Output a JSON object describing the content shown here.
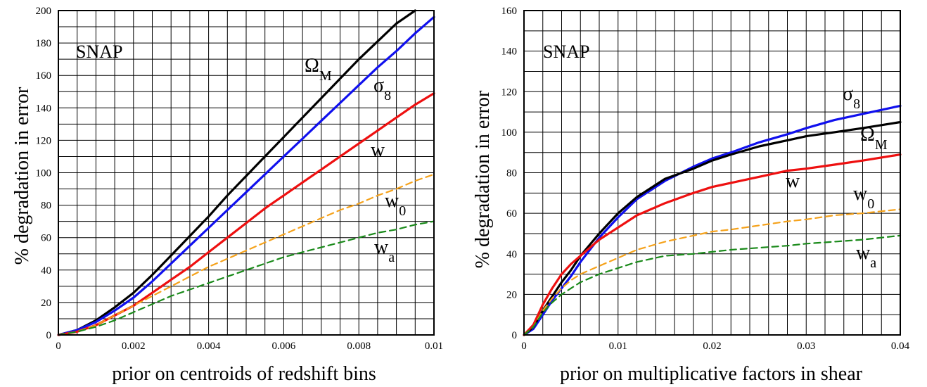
{
  "colors": {
    "omega_m": "#000000",
    "sigma_8": "#1010ee",
    "w": "#ee1010",
    "w0": "#f5a21b",
    "wa": "#1a8a1a"
  },
  "chart_data": [
    {
      "type": "line",
      "xlabel": "prior on centroids of redshift bins",
      "ylabel": "% degradation in error",
      "annotation": "SNAP",
      "xlim": [
        0,
        0.01
      ],
      "ylim": [
        0,
        200
      ],
      "xticks": [
        0,
        0.002,
        0.004,
        0.006,
        0.008,
        0.01
      ],
      "xtick_labels": [
        "0",
        "0.002",
        "0.004",
        "0.006",
        "0.008",
        "0.01"
      ],
      "yticks": [
        0,
        20,
        40,
        60,
        80,
        100,
        120,
        140,
        160,
        180,
        200
      ],
      "ytick_labels": [
        "0",
        "20",
        "40",
        "60",
        "80",
        "100",
        "120",
        "140",
        "160",
        "180",
        "200"
      ],
      "grid": true,
      "series": [
        {
          "key": "omega_m",
          "label_main": "Ω",
          "label_sub": "M",
          "style": "solid",
          "x": [
            0,
            0.0005,
            0.001,
            0.0015,
            0.002,
            0.0025,
            0.003,
            0.0035,
            0.004,
            0.0045,
            0.005,
            0.0055,
            0.006,
            0.0065,
            0.007,
            0.0075,
            0.008,
            0.0085,
            0.009,
            0.0095
          ],
          "y": [
            0,
            3,
            9,
            17,
            26,
            37,
            49,
            61,
            73,
            86,
            98,
            110,
            122,
            134,
            146,
            158,
            170,
            181,
            192,
            200
          ]
        },
        {
          "key": "sigma_8",
          "label_main": "σ",
          "label_sub": "8",
          "style": "solid",
          "x": [
            0,
            0.0005,
            0.001,
            0.0015,
            0.002,
            0.0025,
            0.003,
            0.0035,
            0.004,
            0.0045,
            0.005,
            0.0055,
            0.006,
            0.0065,
            0.007,
            0.0075,
            0.008,
            0.0085,
            0.009,
            0.0095,
            0.01
          ],
          "y": [
            0,
            3,
            8,
            15,
            23,
            33,
            44,
            55,
            66,
            77,
            88,
            99,
            110,
            121,
            132,
            143,
            154,
            165,
            175,
            186,
            196
          ]
        },
        {
          "key": "w",
          "label_main": "w",
          "label_sub": "",
          "style": "solid",
          "x": [
            0,
            0.0005,
            0.001,
            0.0015,
            0.002,
            0.0025,
            0.003,
            0.0035,
            0.004,
            0.0045,
            0.005,
            0.0055,
            0.006,
            0.0065,
            0.007,
            0.0075,
            0.008,
            0.0085,
            0.009,
            0.0095,
            0.01
          ],
          "y": [
            0,
            2,
            6,
            12,
            18,
            26,
            34,
            42,
            51,
            60,
            69,
            78,
            86,
            94,
            102,
            110,
            118,
            126,
            134,
            142,
            149
          ]
        },
        {
          "key": "w0",
          "label_main": "w",
          "label_sub": "0",
          "style": "dashed",
          "x": [
            0,
            0.0005,
            0.001,
            0.0015,
            0.002,
            0.0025,
            0.003,
            0.0035,
            0.004,
            0.0045,
            0.005,
            0.0055,
            0.006,
            0.0065,
            0.007,
            0.0075,
            0.008,
            0.0085,
            0.009,
            0.0095,
            0.01
          ],
          "y": [
            0,
            2,
            6,
            12,
            18,
            24,
            30,
            36,
            42,
            47,
            52,
            57,
            62,
            67,
            72,
            77,
            81,
            86,
            90,
            95,
            99
          ]
        },
        {
          "key": "wa",
          "label_main": "w",
          "label_sub": "a",
          "style": "dashed",
          "x": [
            0,
            0.0005,
            0.001,
            0.0015,
            0.002,
            0.0025,
            0.003,
            0.0035,
            0.004,
            0.0045,
            0.005,
            0.0055,
            0.006,
            0.0065,
            0.007,
            0.0075,
            0.008,
            0.0085,
            0.009,
            0.0095,
            0.01
          ],
          "y": [
            0,
            2,
            5,
            9,
            14,
            19,
            24,
            28,
            32,
            36,
            40,
            44,
            48,
            51,
            54,
            57,
            60,
            63,
            65,
            68,
            70
          ]
        }
      ]
    },
    {
      "type": "line",
      "xlabel": "prior on multiplicative factors in shear",
      "ylabel": "% degradation in error",
      "annotation": "SNAP",
      "xlim": [
        0,
        0.04
      ],
      "ylim": [
        0,
        160
      ],
      "xticks": [
        0,
        0.01,
        0.02,
        0.03,
        0.04
      ],
      "xtick_labels": [
        "0",
        "0.01",
        "0.02",
        "0.03",
        "0.04"
      ],
      "yticks": [
        0,
        20,
        40,
        60,
        80,
        100,
        120,
        140,
        160
      ],
      "ytick_labels": [
        "0",
        "20",
        "40",
        "60",
        "80",
        "100",
        "120",
        "140",
        "160"
      ],
      "grid": true,
      "series": [
        {
          "key": "sigma_8",
          "label_main": "σ",
          "label_sub": "8",
          "style": "solid",
          "x": [
            0,
            0.001,
            0.002,
            0.003,
            0.004,
            0.005,
            0.006,
            0.008,
            0.01,
            0.012,
            0.015,
            0.018,
            0.02,
            0.022,
            0.025,
            0.028,
            0.03,
            0.033,
            0.036,
            0.04
          ],
          "y": [
            0,
            3,
            10,
            17,
            23,
            29,
            36,
            48,
            58,
            67,
            76,
            83,
            87,
            90,
            95,
            99,
            102,
            106,
            109,
            113
          ]
        },
        {
          "key": "omega_m",
          "label_main": "Ω",
          "label_sub": "M",
          "style": "solid",
          "x": [
            0,
            0.001,
            0.002,
            0.003,
            0.004,
            0.005,
            0.006,
            0.008,
            0.01,
            0.012,
            0.015,
            0.018,
            0.02,
            0.022,
            0.025,
            0.028,
            0.03,
            0.033,
            0.036,
            0.04
          ],
          "y": [
            0,
            4,
            12,
            19,
            26,
            32,
            39,
            50,
            60,
            68,
            77,
            82,
            86,
            89,
            93,
            96,
            98,
            100,
            102,
            105
          ]
        },
        {
          "key": "w",
          "label_main": "w",
          "label_sub": "",
          "style": "solid",
          "x": [
            0,
            0.001,
            0.002,
            0.003,
            0.004,
            0.005,
            0.006,
            0.008,
            0.01,
            0.012,
            0.015,
            0.018,
            0.02,
            0.022,
            0.025,
            0.028,
            0.03,
            0.033,
            0.036,
            0.04
          ],
          "y": [
            0,
            5,
            15,
            23,
            30,
            35,
            39,
            47,
            53,
            59,
            65,
            70,
            73,
            75,
            78,
            81,
            82,
            84,
            86,
            89
          ]
        },
        {
          "key": "w0",
          "label_main": "w",
          "label_sub": "0",
          "style": "dashed",
          "x": [
            0,
            0.001,
            0.002,
            0.003,
            0.004,
            0.005,
            0.006,
            0.008,
            0.01,
            0.012,
            0.015,
            0.018,
            0.02,
            0.022,
            0.025,
            0.028,
            0.03,
            0.033,
            0.036,
            0.04
          ],
          "y": [
            0,
            4,
            12,
            18,
            23,
            27,
            30,
            34,
            38,
            42,
            46,
            49,
            51,
            52,
            54,
            56,
            57,
            59,
            60,
            62
          ]
        },
        {
          "key": "wa",
          "label_main": "w",
          "label_sub": "a",
          "style": "dashed",
          "x": [
            0,
            0.001,
            0.002,
            0.003,
            0.004,
            0.005,
            0.006,
            0.008,
            0.01,
            0.012,
            0.015,
            0.018,
            0.02,
            0.022,
            0.025,
            0.028,
            0.03,
            0.033,
            0.036,
            0.04
          ],
          "y": [
            0,
            4,
            11,
            16,
            20,
            23,
            26,
            30,
            33,
            36,
            39,
            40,
            41,
            42,
            43,
            44,
            45,
            46,
            47,
            49
          ]
        }
      ]
    }
  ]
}
